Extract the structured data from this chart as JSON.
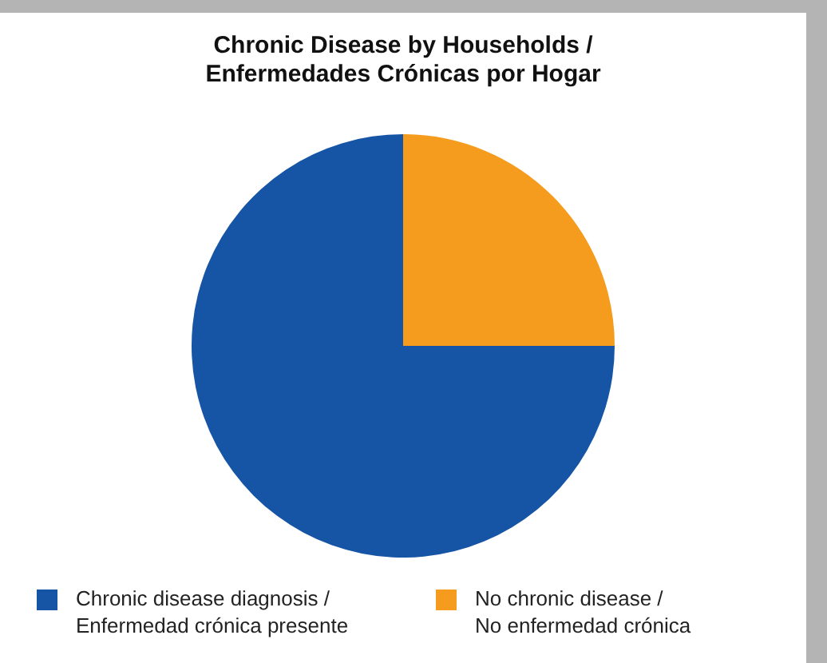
{
  "chart_data": {
    "type": "pie",
    "title": "Chronic Disease by Households /\nEnfermedades Crónicas por Hogar",
    "categories": [
      "Chronic disease diagnosis /\nEnfermedad crónica presente",
      "No chronic disease /\nNo enfermedad crónica"
    ],
    "values": [
      75,
      25
    ],
    "colors": [
      "#1655a5",
      "#f59c1f"
    ],
    "legend": "bottom"
  }
}
